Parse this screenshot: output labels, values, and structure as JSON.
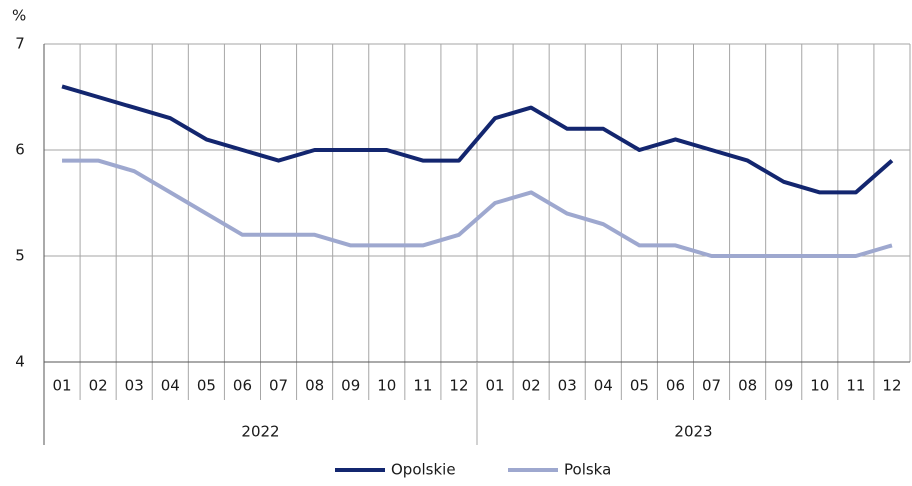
{
  "chart_data": {
    "type": "line",
    "y_label": "%",
    "categories": [
      "01",
      "02",
      "03",
      "04",
      "05",
      "06",
      "07",
      "08",
      "09",
      "10",
      "11",
      "12",
      "01",
      "02",
      "03",
      "04",
      "05",
      "06",
      "07",
      "08",
      "09",
      "10",
      "11",
      "12"
    ],
    "x_groups": [
      "2022",
      "2023"
    ],
    "series": [
      {
        "name": "Opolskie",
        "color": "#13266f",
        "values": [
          6.6,
          6.5,
          6.4,
          6.3,
          6.1,
          6.0,
          5.9,
          6.0,
          6.0,
          6.0,
          5.9,
          5.9,
          6.3,
          6.4,
          6.2,
          6.2,
          6.0,
          6.1,
          6.0,
          5.9,
          5.7,
          5.6,
          5.6,
          5.9
        ]
      },
      {
        "name": "Polska",
        "color": "#9ea8cf",
        "values": [
          5.9,
          5.9,
          5.8,
          5.6,
          5.4,
          5.2,
          5.2,
          5.2,
          5.1,
          5.1,
          5.1,
          5.2,
          5.5,
          5.6,
          5.4,
          5.3,
          5.1,
          5.1,
          5.0,
          5.0,
          5.0,
          5.0,
          5.0,
          5.1
        ]
      }
    ],
    "ylim": [
      4,
      7
    ],
    "yticks": [
      4,
      5,
      6,
      7
    ],
    "grid": true,
    "legend": "bottom"
  }
}
